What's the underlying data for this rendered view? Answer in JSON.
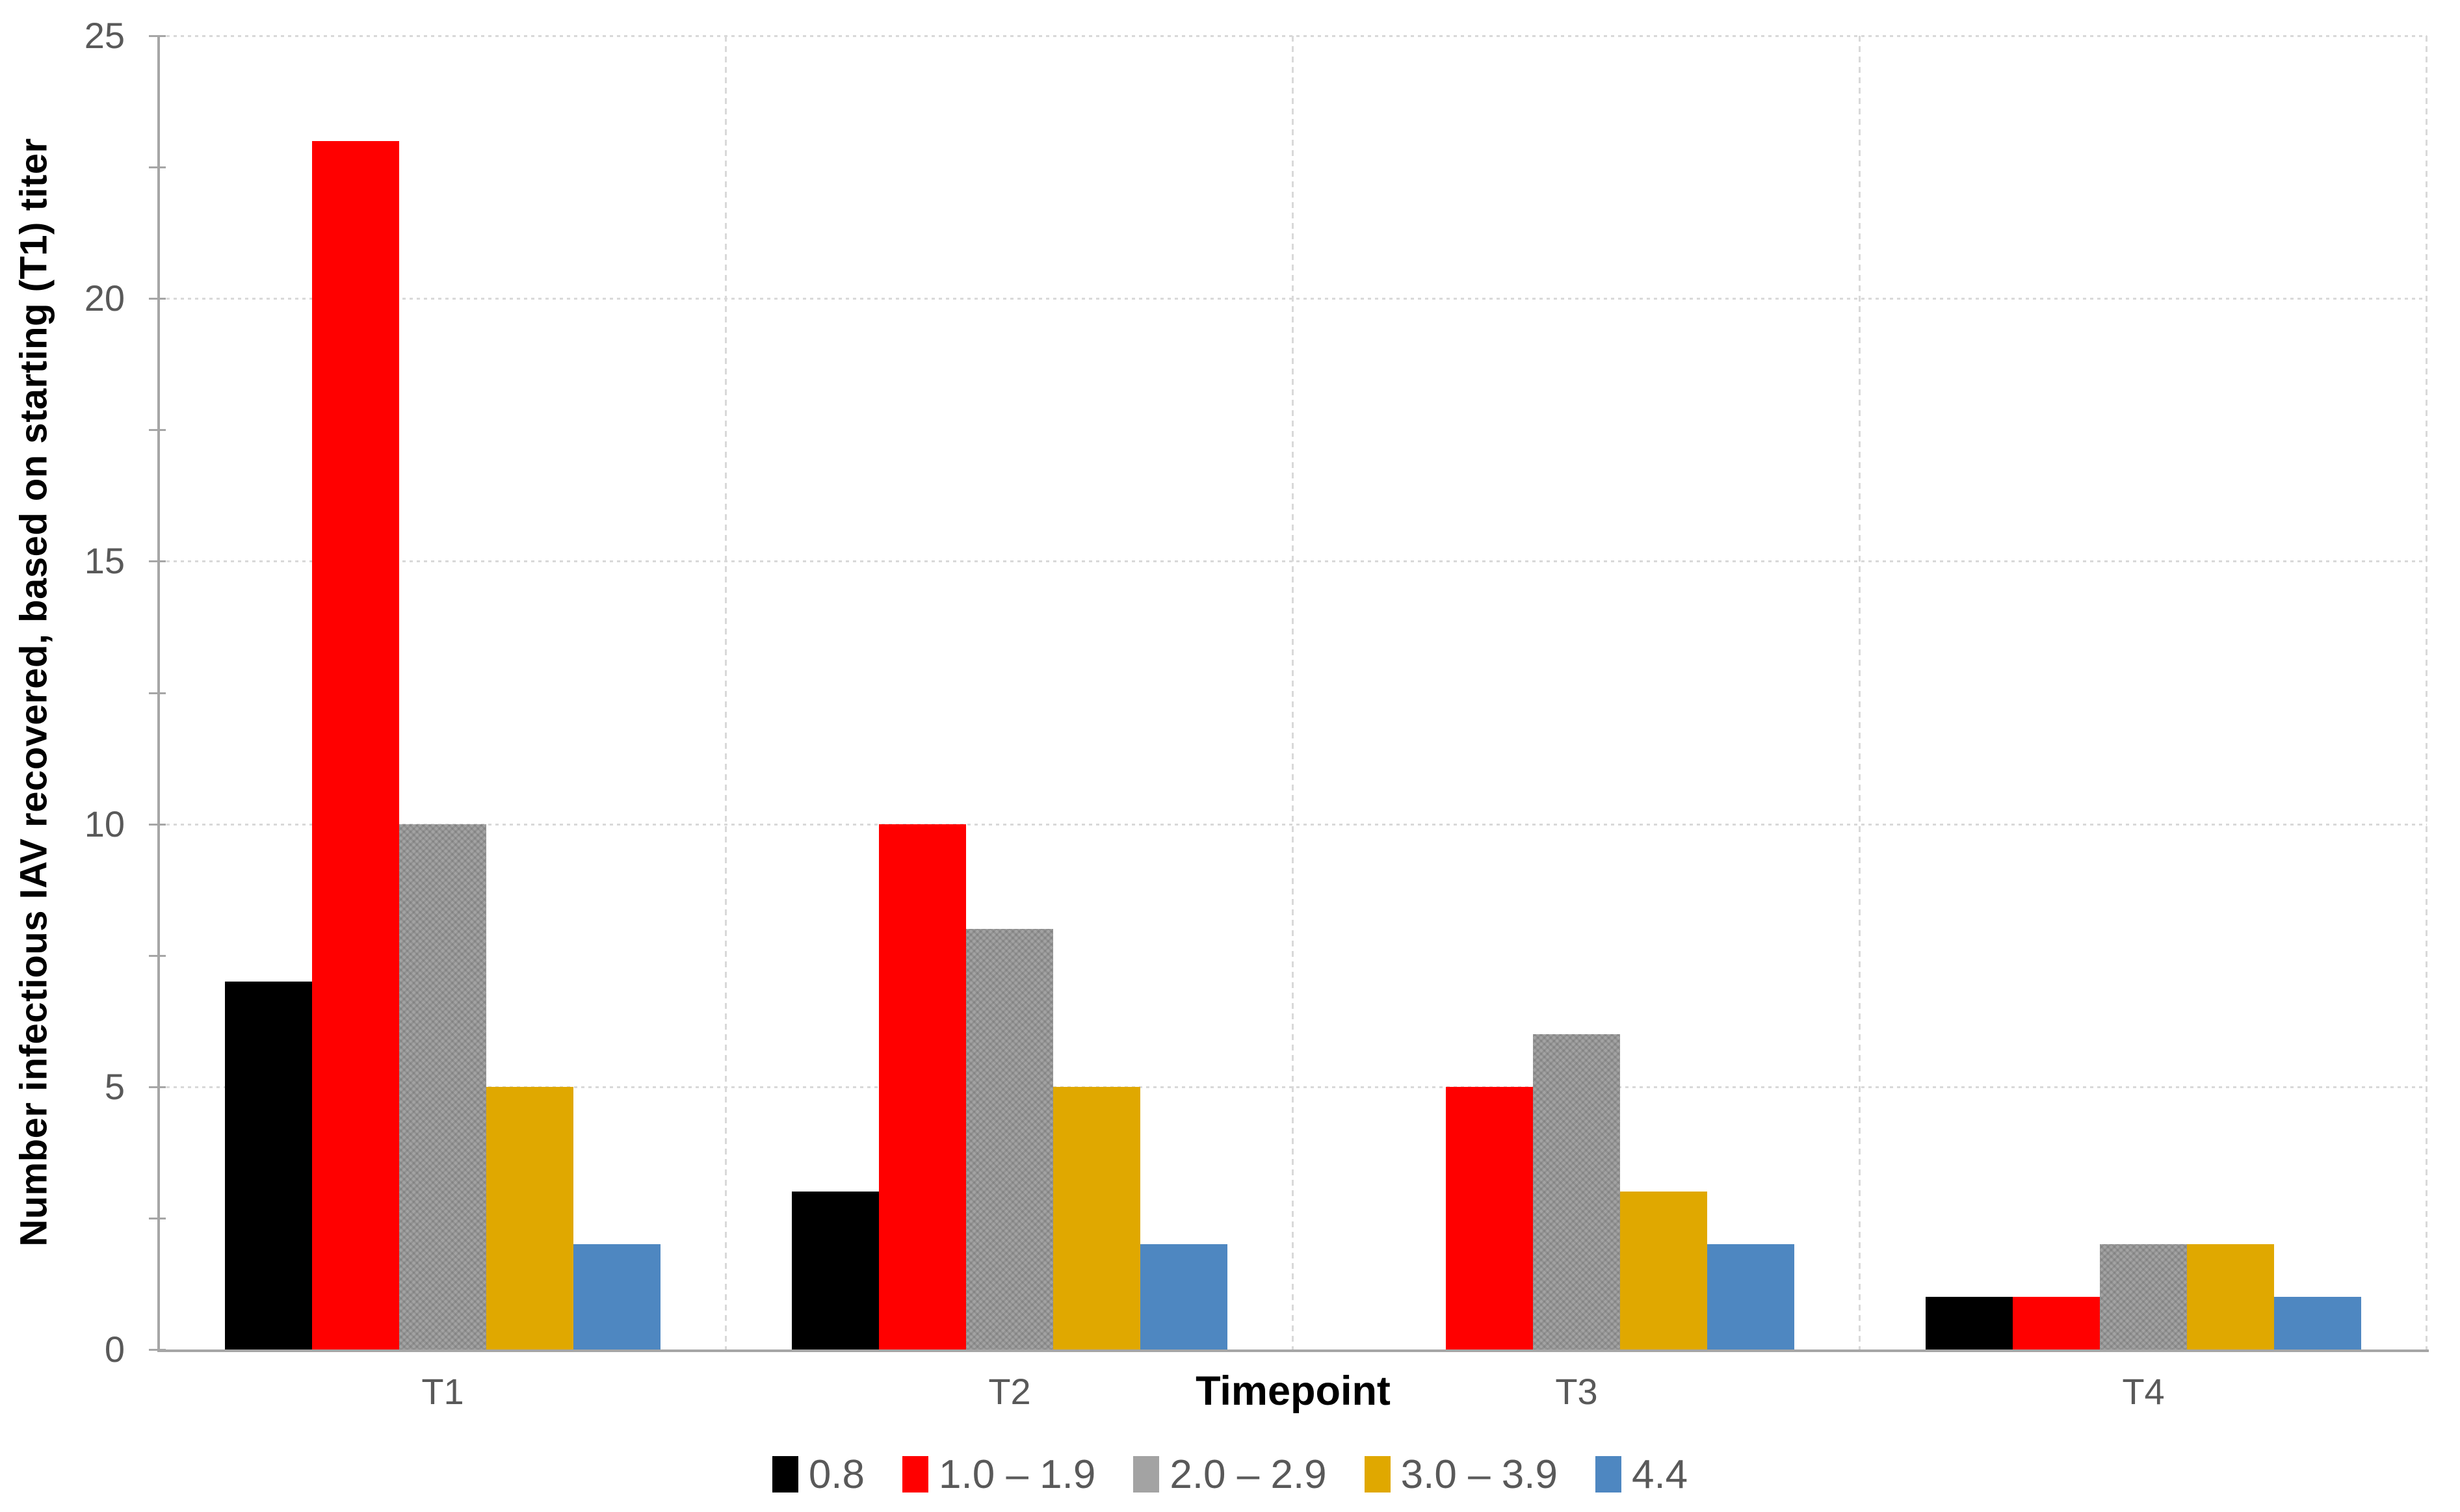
{
  "chart_data": {
    "type": "bar",
    "title": "",
    "categories": [
      "T1",
      "T2",
      "T3",
      "T4"
    ],
    "series": [
      {
        "name": "0.8",
        "color": "#000000",
        "pattern": false,
        "values": [
          7,
          3,
          0,
          1
        ]
      },
      {
        "name": "1.0 – 1.9",
        "color": "#FF0000",
        "pattern": false,
        "values": [
          23,
          10,
          5,
          1
        ]
      },
      {
        "name": "2.0 – 2.9",
        "color": "#A3A3A3",
        "pattern": true,
        "values": [
          10,
          8,
          6,
          2
        ]
      },
      {
        "name": "3.0 – 3.9",
        "color": "#E0A800",
        "pattern": false,
        "values": [
          5,
          5,
          3,
          2
        ]
      },
      {
        "name": "4.4",
        "color": "#4E87C1",
        "pattern": false,
        "values": [
          2,
          2,
          2,
          1
        ]
      }
    ],
    "xlabel": "Timepoint",
    "ylabel": "Number infectious IAV recovered, based on starting (T1) titer",
    "ylim": [
      0,
      25
    ],
    "y_major_unit": 5,
    "y_minor_unit": 2.5,
    "y_tick_labels": [
      "0",
      "5",
      "10",
      "15",
      "20",
      "25"
    ],
    "grid": {
      "horizontal": "dotted",
      "vertical": "dashed-at-category-boundaries"
    },
    "legend_position": "bottom-center",
    "colors": {
      "axis": "#A6A6A6",
      "gridline": "#D9D9D9",
      "tick_label": "#595959",
      "category_label": "#595959",
      "legend_text": "#595959",
      "axis_title": "#000000"
    }
  }
}
